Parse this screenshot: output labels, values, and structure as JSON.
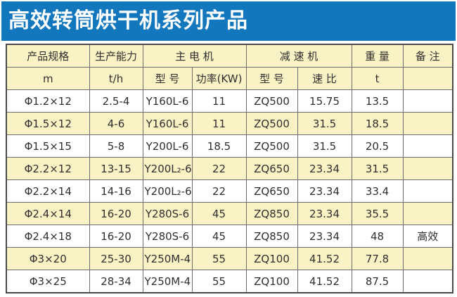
{
  "banner": {
    "title": "高效转筒烘干机系列产品",
    "bg_color": "#1277BD",
    "text_color": "#FFFFFF"
  },
  "table": {
    "header_row1": {
      "spec": "产品规格",
      "capacity": "生产能力",
      "main_motor": "主 电 机",
      "reducer": "减 速 机",
      "weight": "重 量",
      "remark": "备 注"
    },
    "header_row2": {
      "spec_unit": "m",
      "capacity_unit": "t/h",
      "motor_model": "型 号",
      "motor_power": "功率(KW)",
      "reducer_model": "型 号",
      "reducer_ratio": "速 比",
      "weight_unit": "t",
      "remark_blank": ""
    },
    "rows": [
      [
        "Φ1.2×12",
        "2.5-4",
        "Y160L-6",
        "11",
        "ZQ500",
        "15.75",
        "13.5",
        ""
      ],
      [
        "Φ1.5×12",
        "4-6",
        "Y160L-6",
        "11",
        "ZQ500",
        "31.5",
        "18.5",
        ""
      ],
      [
        "Φ1.5×15",
        "5-8",
        "Y200L-6",
        "18.5",
        "ZQ500",
        "31.5",
        "20.5",
        ""
      ],
      [
        "Φ2.2×12",
        "13-15",
        "Y200L₂-6",
        "22",
        "ZQ650",
        "23.34",
        "31.5",
        ""
      ],
      [
        "Φ2.2×14",
        "14-16",
        "Y200L₂-6",
        "22",
        "ZQ650",
        "23.34",
        "33.4",
        ""
      ],
      [
        "Φ2.4×14",
        "16-20",
        "Y280S-6",
        "45",
        "ZQ850",
        "23.34",
        "35.5",
        ""
      ],
      [
        "Φ2.4×18",
        "16-20",
        "Y280S-6",
        "45",
        "ZQ850",
        "23.34",
        "48",
        "高效"
      ],
      [
        "Φ3×20",
        "25-30",
        "Y250M-4",
        "55",
        "ZQ100",
        "41.52",
        "77.8",
        ""
      ],
      [
        "Φ3×25",
        "28-34",
        "Y250M-4",
        "55",
        "ZQ100",
        "41.52",
        "87.5",
        ""
      ]
    ],
    "colors": {
      "header_bg": "#F9F2C4",
      "row_bg": "#FFFFFF",
      "row_alt_bg": "#F9F2C4",
      "border": "#6E6E6E",
      "outer_border": "#4A4A4A"
    }
  }
}
